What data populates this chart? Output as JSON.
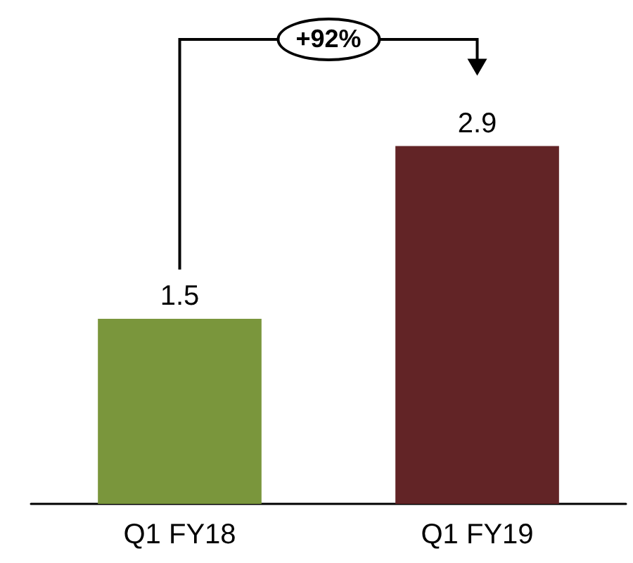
{
  "chart_data": {
    "type": "bar",
    "categories": [
      "Q1 FY18",
      "Q1 FY19"
    ],
    "values": [
      1.5,
      2.9
    ],
    "colors": [
      "#7a963c",
      "#622426"
    ],
    "data_labels": true,
    "annotations": [
      "+92%"
    ]
  }
}
